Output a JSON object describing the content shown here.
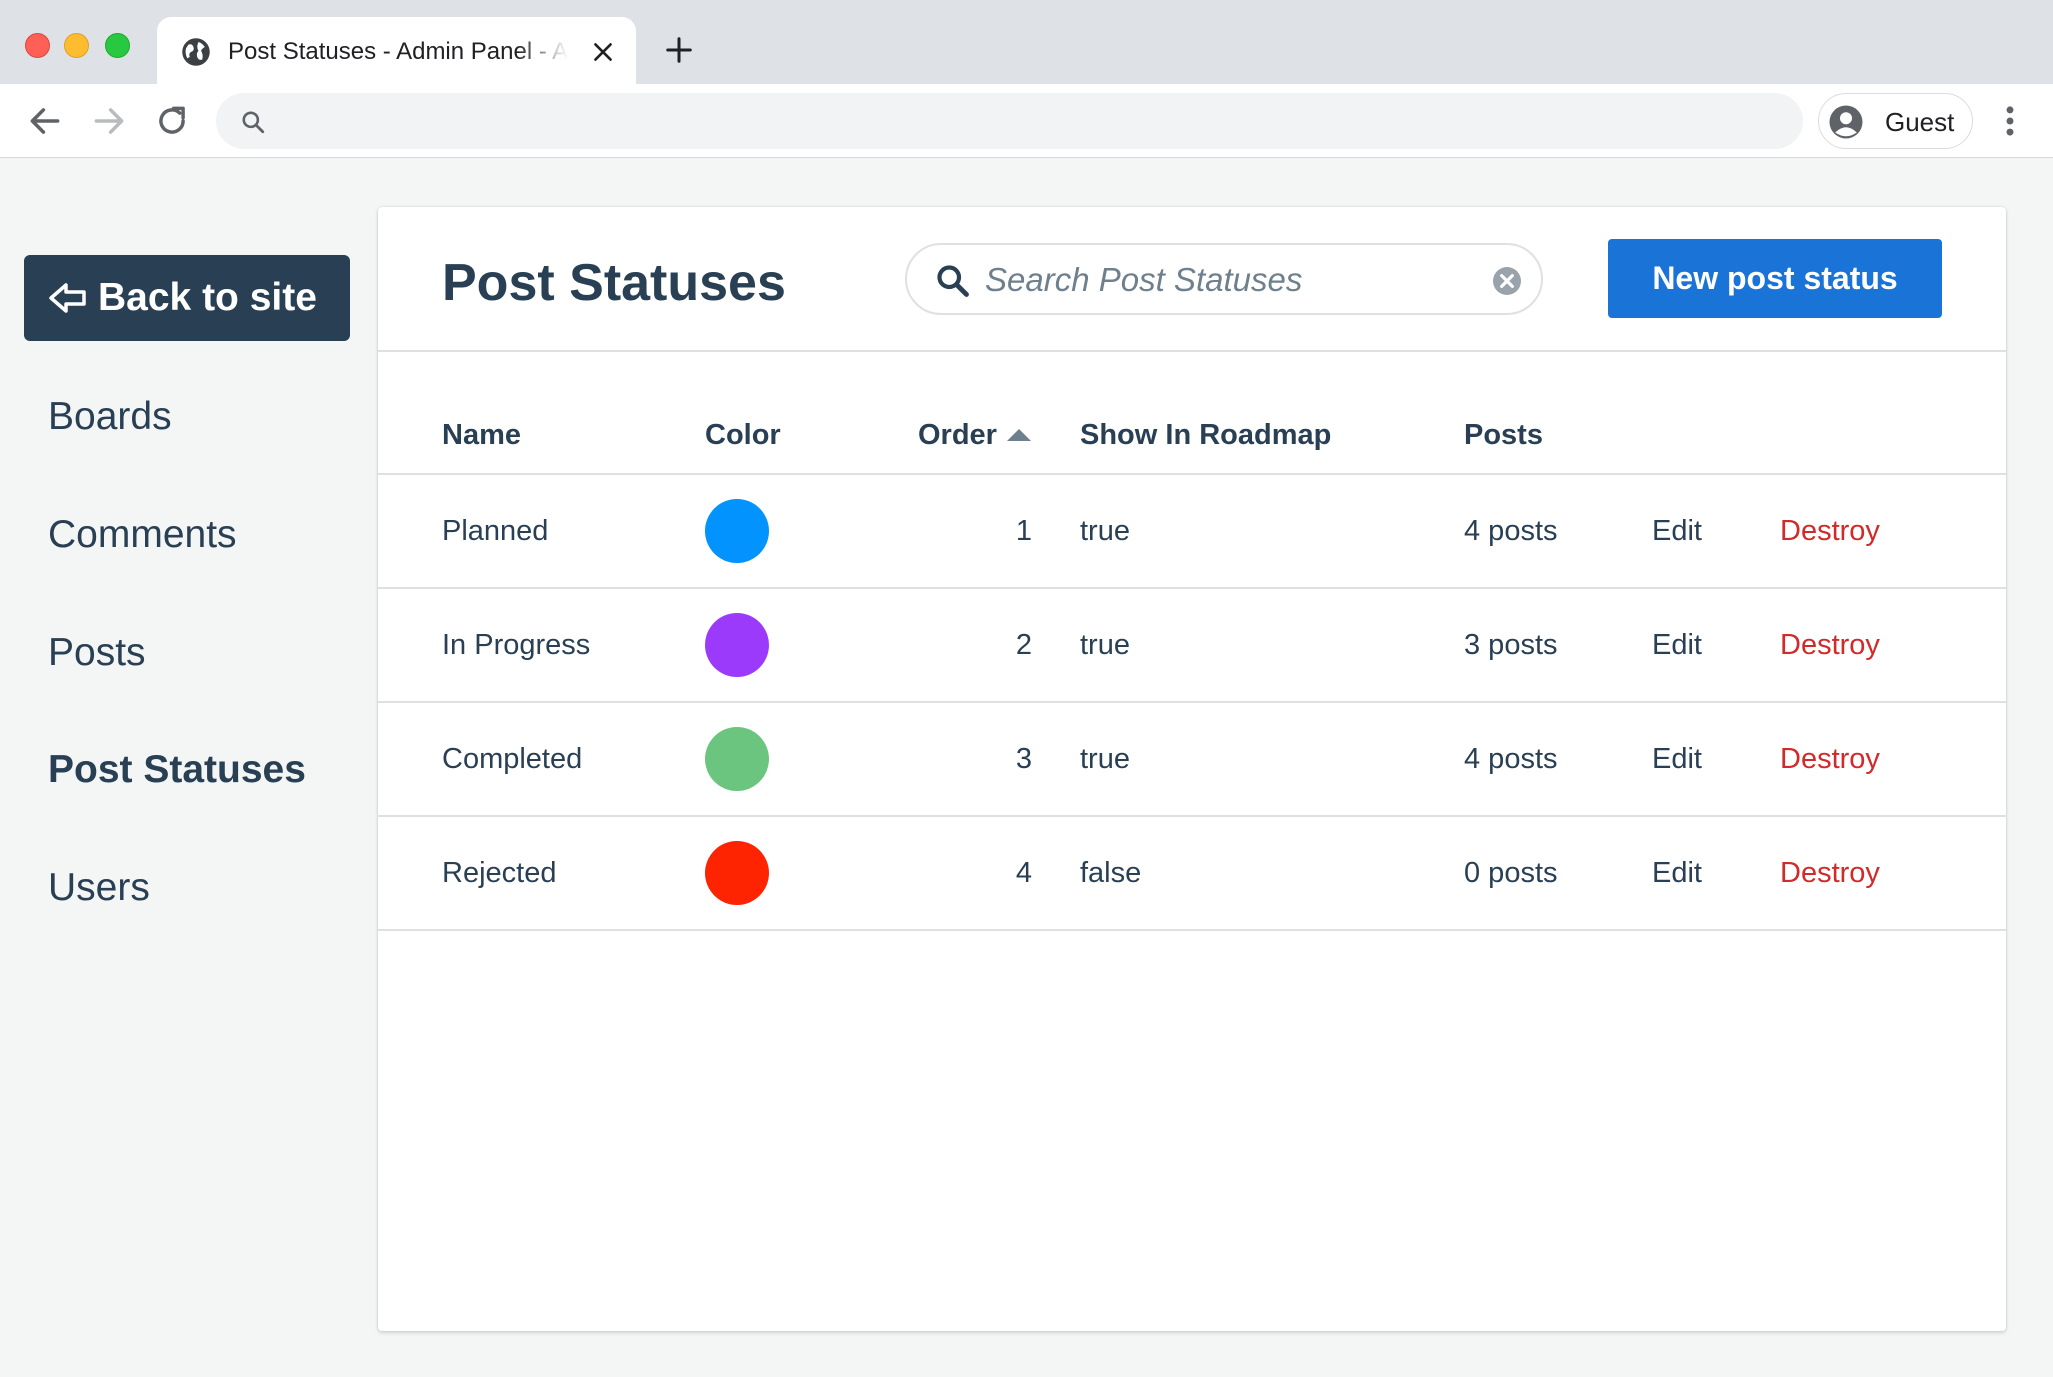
{
  "browser": {
    "tab_title": "Post Statuses - Admin Panel - Astuto",
    "profile_label": "Guest",
    "address": ""
  },
  "sidebar": {
    "back_label": "Back to site",
    "items": [
      {
        "label": "Boards",
        "active": false
      },
      {
        "label": "Comments",
        "active": false
      },
      {
        "label": "Posts",
        "active": false
      },
      {
        "label": "Post Statuses",
        "active": true
      },
      {
        "label": "Users",
        "active": false
      }
    ]
  },
  "header": {
    "title": "Post Statuses",
    "search_placeholder": "Search Post Statuses",
    "new_button": "New post status"
  },
  "table": {
    "columns": {
      "name": "Name",
      "color": "Color",
      "order": "Order",
      "show_in_roadmap": "Show In Roadmap",
      "posts": "Posts"
    },
    "sort": {
      "column": "order",
      "direction": "ascending"
    },
    "rows": [
      {
        "name": "Planned",
        "color": "#0293fe",
        "order": "1",
        "show_in_roadmap": "true",
        "posts": "4 posts",
        "edit": "Edit",
        "destroy": "Destroy"
      },
      {
        "name": "In Progress",
        "color": "#9b3afa",
        "order": "2",
        "show_in_roadmap": "true",
        "posts": "3 posts",
        "edit": "Edit",
        "destroy": "Destroy"
      },
      {
        "name": "Completed",
        "color": "#6cc57f",
        "order": "3",
        "show_in_roadmap": "true",
        "posts": "4 posts",
        "edit": "Edit",
        "destroy": "Destroy"
      },
      {
        "name": "Rejected",
        "color": "#fe2301",
        "order": "4",
        "show_in_roadmap": "false",
        "posts": "0 posts",
        "edit": "Edit",
        "destroy": "Destroy"
      }
    ]
  }
}
